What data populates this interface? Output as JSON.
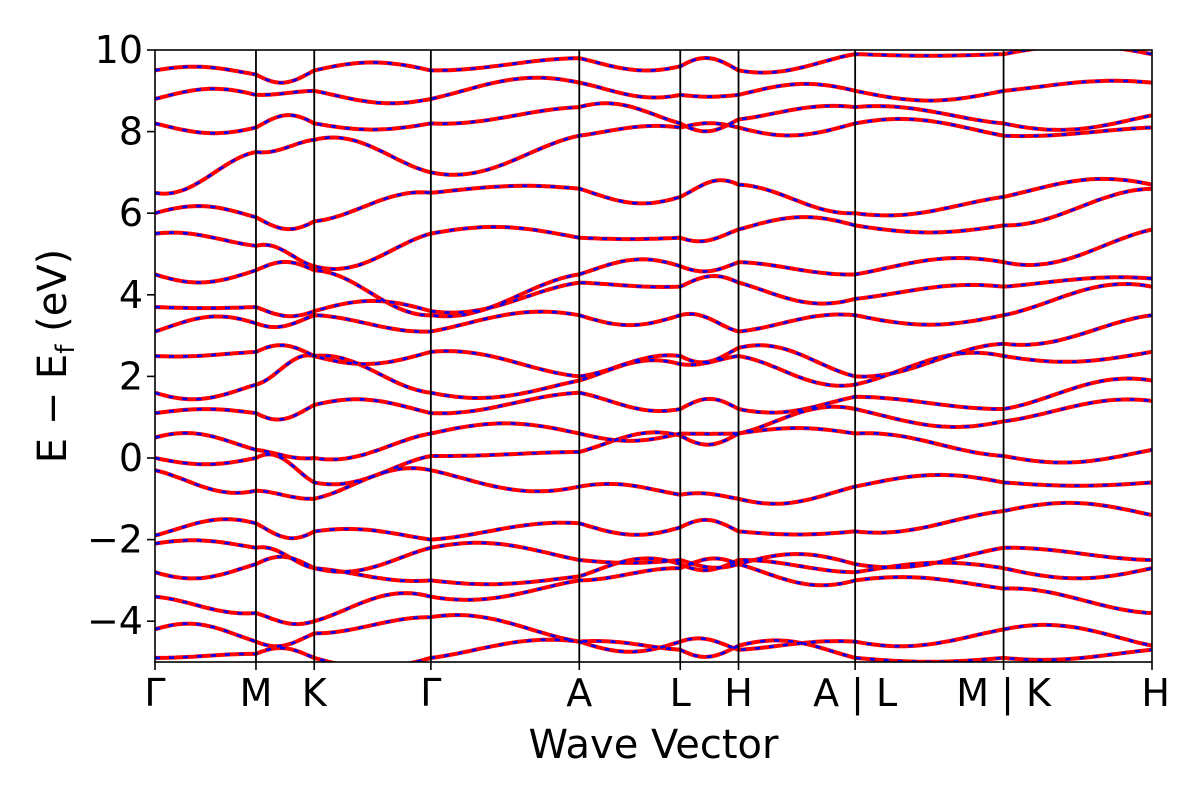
{
  "chart_data": {
    "type": "line",
    "title": "",
    "xlabel": "Wave Vector",
    "ylabel": "E − E",
    "ylabel_sub": "f",
    "ylabel_unit": " (eV)",
    "ylim": [
      -5,
      10
    ],
    "yticks": [
      -4,
      -2,
      0,
      2,
      4,
      6,
      8,
      10
    ],
    "ytick_labels": [
      "−4",
      "−2",
      "0",
      "2",
      "4",
      "6",
      "8",
      "10"
    ],
    "grid": false,
    "legend": "none",
    "high_symmetry_points": [
      {
        "label": "Γ",
        "x": 0.0
      },
      {
        "label": "M",
        "x": 1.0
      },
      {
        "label": "K",
        "x": 1.577
      },
      {
        "label": "Γ",
        "x": 2.732
      },
      {
        "label": "A",
        "x": 4.202
      },
      {
        "label": "L",
        "x": 5.202
      },
      {
        "label": "H",
        "x": 5.779
      },
      {
        "label": "A | L",
        "x": 6.934
      },
      {
        "label": "M | K",
        "x": 8.404
      },
      {
        "label": "H",
        "x": 9.874
      }
    ],
    "series": [
      {
        "color": "#ff0000",
        "style": "solid",
        "x": [
          0,
          1.0,
          1.577,
          2.732,
          4.202,
          5.202,
          5.779,
          6.934,
          8.404,
          9.874
        ],
        "bands": [
          [
            -4.9,
            -4.8,
            -4.9,
            -4.9,
            -4.5,
            -4.7,
            -4.6,
            -4.9,
            -4.9,
            -4.7
          ],
          [
            -4.2,
            -4.5,
            -4.3,
            -3.9,
            -4.5,
            -4.5,
            -4.7,
            -4.5,
            -4.2,
            -4.6
          ],
          [
            -3.4,
            -3.8,
            -4.0,
            -3.4,
            -3.0,
            -2.7,
            -2.6,
            -3.0,
            -3.2,
            -3.8
          ],
          [
            -2.8,
            -2.6,
            -2.7,
            -3.0,
            -2.9,
            -2.6,
            -2.5,
            -2.8,
            -2.7,
            -2.7
          ],
          [
            -2.1,
            -2.2,
            -2.7,
            -2.2,
            -2.5,
            -2.5,
            -2.6,
            -2.6,
            -2.2,
            -2.5
          ],
          [
            -1.9,
            -1.6,
            -1.8,
            -2.0,
            -1.6,
            -1.7,
            -1.8,
            -1.8,
            -1.3,
            -1.4
          ],
          [
            -0.3,
            -0.8,
            -1.0,
            -0.3,
            -0.7,
            -0.9,
            -1.0,
            -0.7,
            -0.6,
            -0.6
          ],
          [
            0.0,
            0.0,
            -0.6,
            0.05,
            0.15,
            0.55,
            0.6,
            0.6,
            0.05,
            0.2
          ],
          [
            0.5,
            0.2,
            0.0,
            0.6,
            0.6,
            0.6,
            0.6,
            1.2,
            0.9,
            1.4
          ],
          [
            1.1,
            1.1,
            1.3,
            1.1,
            1.6,
            1.2,
            1.2,
            1.5,
            1.2,
            1.9
          ],
          [
            1.6,
            1.8,
            2.5,
            1.6,
            1.9,
            2.3,
            2.5,
            1.8,
            2.5,
            2.6
          ],
          [
            2.5,
            2.6,
            2.5,
            2.6,
            2.0,
            2.5,
            2.7,
            2.0,
            2.8,
            3.5
          ],
          [
            3.1,
            3.3,
            3.5,
            3.1,
            3.5,
            3.5,
            3.1,
            3.5,
            3.5,
            4.2
          ],
          [
            3.7,
            3.7,
            3.6,
            3.6,
            4.3,
            4.2,
            4.3,
            3.9,
            4.2,
            4.4
          ],
          [
            4.5,
            4.6,
            4.6,
            3.5,
            4.5,
            4.7,
            4.8,
            4.5,
            4.8,
            5.6
          ],
          [
            5.5,
            5.2,
            4.7,
            5.5,
            5.4,
            5.4,
            5.6,
            5.7,
            5.7,
            6.6
          ],
          [
            6.0,
            5.9,
            5.8,
            6.5,
            6.6,
            6.4,
            6.7,
            6.0,
            6.4,
            6.7
          ],
          [
            6.5,
            7.5,
            7.8,
            7.0,
            7.9,
            8.1,
            8.1,
            8.2,
            7.9,
            8.1
          ],
          [
            8.2,
            8.1,
            8.2,
            8.2,
            8.6,
            8.2,
            8.3,
            8.6,
            8.2,
            8.4
          ],
          [
            8.8,
            8.9,
            9.0,
            8.8,
            9.2,
            8.9,
            8.9,
            9.0,
            9.0,
            9.2
          ],
          [
            9.5,
            9.4,
            9.5,
            9.5,
            9.8,
            9.6,
            9.5,
            9.9,
            9.9,
            9.9
          ]
        ]
      },
      {
        "color": "#0000ff",
        "style": "dashed",
        "x": [
          0,
          1.0,
          1.577,
          2.732,
          4.202,
          5.202,
          5.779,
          6.934,
          8.404,
          9.874
        ],
        "bands": "same as red series (overlaid)"
      }
    ]
  }
}
